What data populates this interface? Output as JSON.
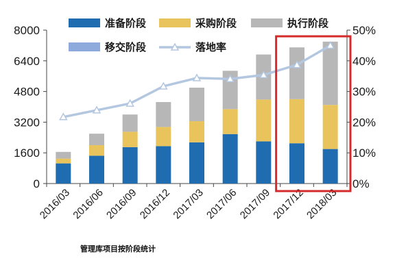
{
  "chart_data": {
    "type": "bar",
    "stacked": true,
    "categories": [
      "2016/03",
      "2016/06",
      "2016/09",
      "2016/12",
      "2017/03",
      "2017/06",
      "2017/09",
      "2017/12",
      "2018/03"
    ],
    "series": [
      {
        "name": "准备阶段",
        "color": "#1f6cb0",
        "values": [
          1050,
          1450,
          1900,
          1950,
          2150,
          2580,
          2200,
          2100,
          1800
        ]
      },
      {
        "name": "采购阶段",
        "color": "#e9c45c",
        "values": [
          250,
          550,
          800,
          1000,
          1100,
          1300,
          2180,
          2300,
          2300
        ]
      },
      {
        "name": "执行阶段",
        "color": "#b7b7b7",
        "values": [
          350,
          600,
          900,
          1300,
          1750,
          2000,
          2350,
          2700,
          3300
        ]
      },
      {
        "name": "移交阶段",
        "color": "#8ea9db",
        "values": [
          0,
          0,
          0,
          0,
          0,
          0,
          0,
          0,
          0
        ]
      }
    ],
    "line": {
      "name": "落地率",
      "color": "#b4c7e0",
      "axis": "right",
      "values": [
        21.7,
        23.9,
        26.1,
        31.7,
        34.4,
        34.1,
        35.4,
        38.7,
        45.0
      ]
    },
    "yticks_left": [
      "0",
      "1600",
      "3200",
      "4800",
      "6400",
      "8000"
    ],
    "yticks_right": [
      "0%",
      "10%",
      "20%",
      "30%",
      "40%",
      "50%"
    ],
    "ylim_left": [
      0,
      8000
    ],
    "ylim_right": [
      0,
      50
    ],
    "grid": false,
    "legend_position": "top",
    "highlight": {
      "categories": [
        "2017/12",
        "2018/03"
      ],
      "color": "#d42a2a"
    },
    "caption": "管理库项目按阶段统计"
  }
}
